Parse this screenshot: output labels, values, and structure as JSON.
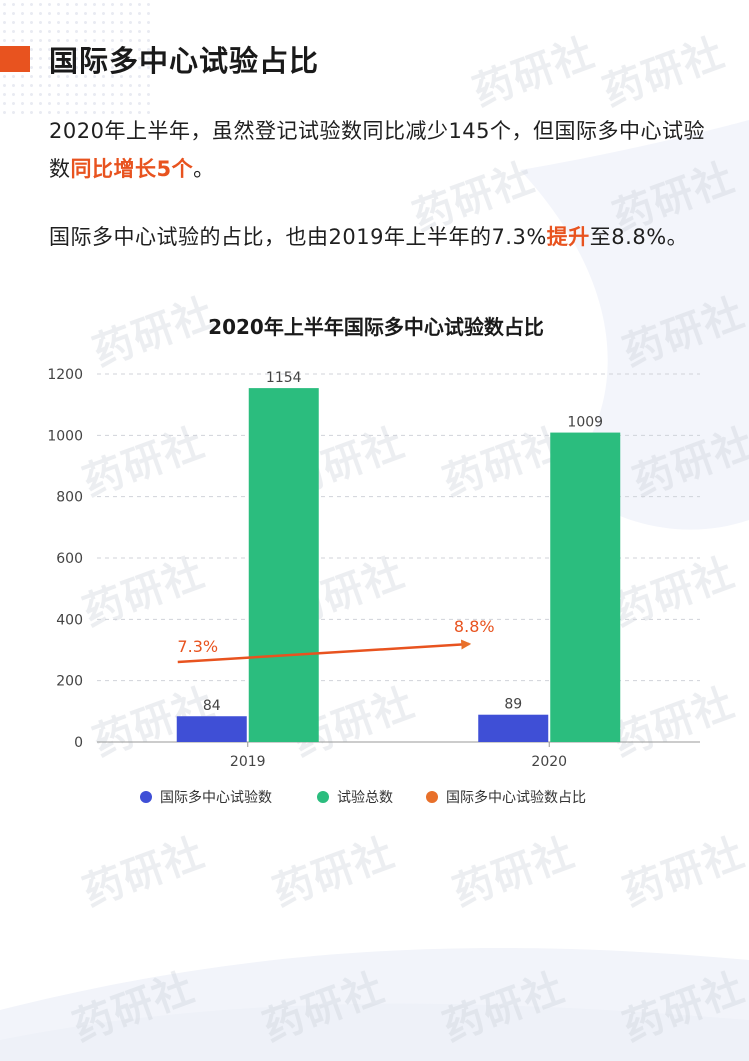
{
  "header": {
    "title": "国际多中心试验占比"
  },
  "paragraph1": {
    "text": "2020年上半年，虽然登记试验数同比减少145个，但国际多中心试验数",
    "highlight": "同比增长5个",
    "tail": "。"
  },
  "paragraph2": {
    "text": "国际多中心试验的占比，也由2019年上半年的7.3%",
    "highlight": "提升",
    "tail": "至8.8%。"
  },
  "watermark_text": "药研社",
  "colors": {
    "accent": "#e8531f",
    "series_intl": "#3f4fd6",
    "series_total": "#2bbd7e",
    "series_ratio": "#e8702a"
  },
  "chart_data": {
    "type": "bar",
    "title": "2020年上半年国际多中心试验数占比",
    "categories": [
      "2019",
      "2020"
    ],
    "ylim": [
      0,
      1200
    ],
    "yticks": [
      0,
      200,
      400,
      600,
      800,
      1000,
      1200
    ],
    "grid": true,
    "legend_position": "bottom",
    "series": [
      {
        "name": "国际多中心试验数",
        "values": [
          84,
          89
        ],
        "color": "#3f4fd6"
      },
      {
        "name": "试验总数",
        "values": [
          1154,
          1009
        ],
        "color": "#2bbd7e"
      },
      {
        "name": "国际多中心试验数占比",
        "values": [
          "7.3%",
          "8.8%"
        ],
        "color": "#e8702a"
      }
    ]
  }
}
